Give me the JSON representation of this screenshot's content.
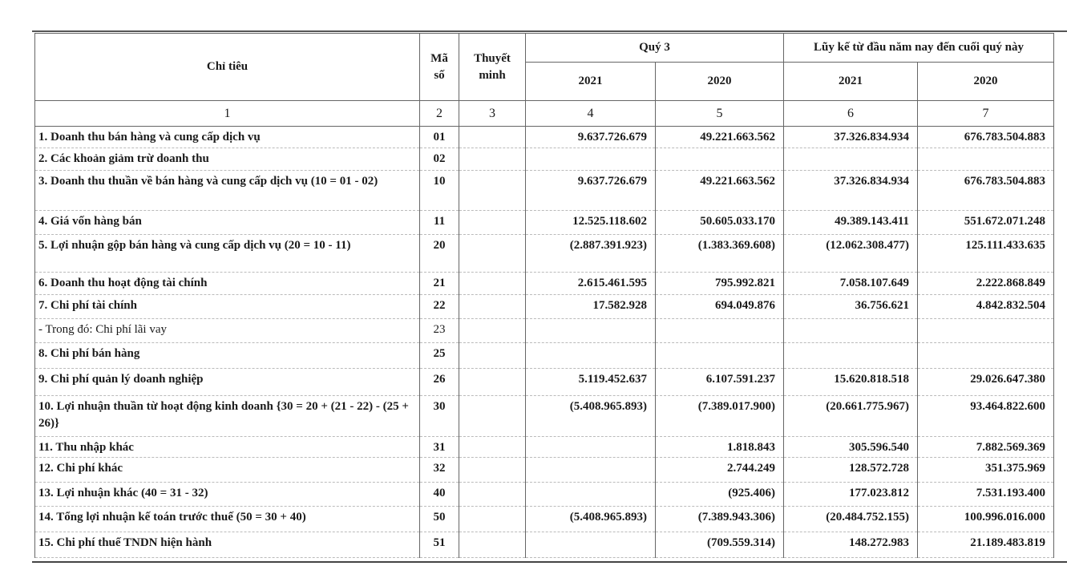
{
  "header": {
    "indicator": "Chỉ tiêu",
    "code": "Mã số",
    "note": "Thuyết minh",
    "quarter_group": "Quý 3",
    "ytd_group": "Lũy kế từ đầu năm nay đến cuối quý này",
    "years": [
      "2021",
      "2020",
      "2021",
      "2020"
    ],
    "column_numbers": [
      "1",
      "2",
      "3",
      "4",
      "5",
      "6",
      "7"
    ]
  },
  "rows": [
    {
      "label": "1. Doanh thu bán hàng và cung cấp dịch vụ",
      "code": "01",
      "note": "",
      "values": [
        "9.637.726.679",
        "49.221.663.562",
        "37.326.834.934",
        "676.783.504.883"
      ]
    },
    {
      "label": "2. Các khoản giảm trừ doanh thu",
      "code": "02",
      "note": "",
      "values": [
        "",
        "",
        "",
        ""
      ]
    },
    {
      "label": "3. Doanh thu thuần về bán hàng và cung cấp dịch vụ (10 = 01 - 02)",
      "code": "10",
      "note": "",
      "values": [
        "9.637.726.679",
        "49.221.663.562",
        "37.326.834.934",
        "676.783.504.883"
      ]
    },
    {
      "label": "4. Giá vốn hàng bán",
      "code": "11",
      "note": "",
      "values": [
        "12.525.118.602",
        "50.605.033.170",
        "49.389.143.411",
        "551.672.071.248"
      ]
    },
    {
      "label": "5. Lợi nhuận gộp bán hàng và cung cấp dịch vụ (20 = 10 - 11)",
      "code": "20",
      "note": "",
      "values": [
        "(2.887.391.923)",
        "(1.383.369.608)",
        "(12.062.308.477)",
        "125.111.433.635"
      ]
    },
    {
      "label": "6. Doanh thu hoạt động tài chính",
      "code": "21",
      "note": "",
      "values": [
        "2.615.461.595",
        "795.992.821",
        "7.058.107.649",
        "2.222.868.849"
      ]
    },
    {
      "label": "7. Chi phí tài chính",
      "code": "22",
      "note": "",
      "values": [
        "17.582.928",
        "694.049.876",
        "36.756.621",
        "4.842.832.504"
      ]
    },
    {
      "label": "- Trong đó: Chi phí lãi vay",
      "code": "23",
      "note": "",
      "values": [
        "",
        "",
        "",
        ""
      ],
      "plain": true
    },
    {
      "label": "8. Chi phí bán hàng",
      "code": "25",
      "note": "",
      "values": [
        "",
        "",
        "",
        ""
      ]
    },
    {
      "label": "9. Chi phí quản lý doanh nghiệp",
      "code": "26",
      "note": "",
      "values": [
        "5.119.452.637",
        "6.107.591.237",
        "15.620.818.518",
        "29.026.647.380"
      ]
    },
    {
      "label": "10. Lợi nhuận thuần từ hoạt động kinh doanh {30 = 20 + (21 - 22) - (25 + 26)}",
      "code": "30",
      "note": "",
      "values": [
        "(5.408.965.893)",
        "(7.389.017.900)",
        "(20.661.775.967)",
        "93.464.822.600"
      ]
    },
    {
      "label": "11. Thu nhập khác",
      "code": "31",
      "note": "",
      "values": [
        "",
        "1.818.843",
        "305.596.540",
        "7.882.569.369"
      ]
    },
    {
      "label": "12. Chi phí khác",
      "code": "32",
      "note": "",
      "values": [
        "",
        "2.744.249",
        "128.572.728",
        "351.375.969"
      ]
    },
    {
      "label": "13. Lợi nhuận khác (40 = 31 - 32)",
      "code": "40",
      "note": "",
      "values": [
        "",
        "(925.406)",
        "177.023.812",
        "7.531.193.400"
      ]
    },
    {
      "label": "14. Tổng lợi nhuận kế toán trước thuế (50 = 30 + 40)",
      "code": "50",
      "note": "",
      "values": [
        "(5.408.965.893)",
        "(7.389.943.306)",
        "(20.484.752.155)",
        "100.996.016.000"
      ]
    },
    {
      "label": "15. Chi phí thuế TNDN hiện hành",
      "code": "51",
      "note": "",
      "values": [
        "",
        "(709.559.314)",
        "148.272.983",
        "21.189.483.819"
      ]
    }
  ]
}
